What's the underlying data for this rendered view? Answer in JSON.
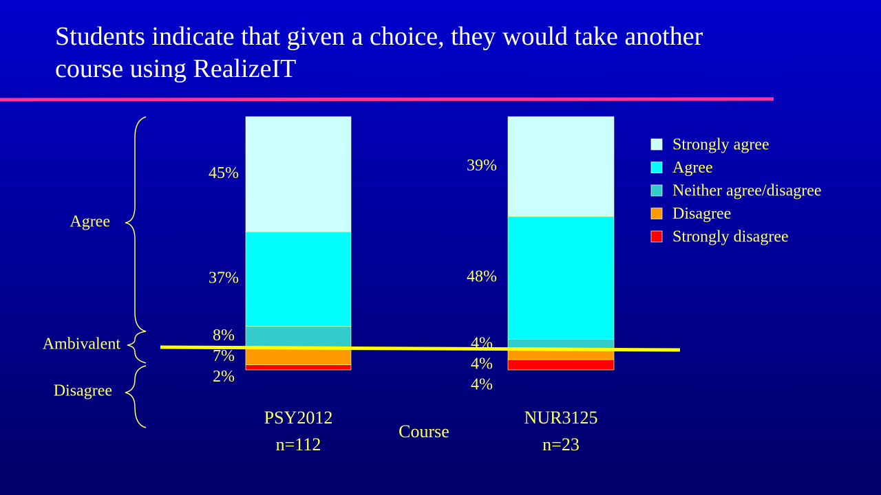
{
  "chart_data": {
    "type": "stacked_bar",
    "title": "Students indicate that given a choice, they would take another course using RealizeIT",
    "x_label": "Course",
    "categories": [
      "PSY2012",
      "NUR3125"
    ],
    "category_notes": [
      "n=112",
      "n=23"
    ],
    "ylim": [
      0,
      100
    ],
    "series": [
      {
        "name": "Strongly agree",
        "color": "#ccffff",
        "values": [
          45,
          39
        ],
        "value_labels": [
          "45%",
          "39%"
        ]
      },
      {
        "name": "Agree",
        "color": "#00ffff",
        "values": [
          37,
          48
        ],
        "value_labels": [
          "37%",
          "48%"
        ]
      },
      {
        "name": "Neither agree/disagree",
        "color": "#33cccc",
        "values": [
          8,
          4
        ],
        "value_labels": [
          "8%",
          "4%"
        ]
      },
      {
        "name": "Disagree",
        "color": "#ff9900",
        "values": [
          7,
          4
        ],
        "value_labels": [
          "7%",
          "4%"
        ]
      },
      {
        "name": "Strongly disagree",
        "color": "#ff0000",
        "values": [
          2,
          4
        ],
        "value_labels": [
          "2%",
          "4%"
        ]
      }
    ],
    "annotations": [
      "Agree",
      "Ambivalent",
      "Disagree"
    ]
  }
}
